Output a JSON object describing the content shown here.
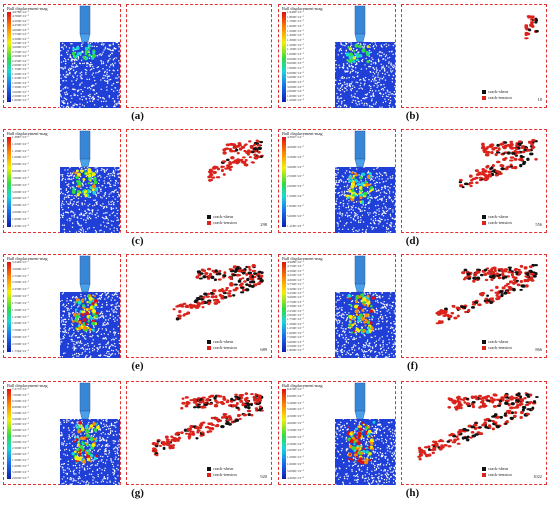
{
  "colors": {
    "frame": "#e53030",
    "shear": "#111111",
    "tension": "#d9231b"
  },
  "colorbar_title": "Ball displacement-mag",
  "legend": {
    "shear": "crack-shear",
    "tension": "crack-tension"
  },
  "panels": [
    {
      "id": "a",
      "label": "(a)",
      "step": "",
      "crack_extent": 0.0,
      "ticks": [
        "4.9780×10⁻²",
        "4.7600×10⁻²",
        "4.5000×10⁻²",
        "4.2500×10⁻²",
        "4.0000×10⁻²",
        "3.7500×10⁻²",
        "3.5000×10⁻²",
        "3.2500×10⁻²",
        "3.0000×10⁻²",
        "2.7500×10⁻²",
        "2.5000×10⁻²",
        "2.2500×10⁻²",
        "2.0000×10⁻²",
        "1.7500×10⁻²",
        "1.5000×10⁻²",
        "1.2500×10⁻²",
        "1.0000×10⁻²",
        "7.5000×10⁻³",
        "5.0000×10⁻³",
        "2.5000×10⁻³",
        "1.0000×10⁻⁵"
      ]
    },
    {
      "id": "b",
      "label": "(b)",
      "step": "18",
      "crack_extent": 0.1,
      "ticks": [
        "1.9400×10⁻²",
        "1.8000×10⁻²",
        "1.7000×10⁻²",
        "1.6000×10⁻²",
        "1.5000×10⁻²",
        "1.4000×10⁻²",
        "1.3000×10⁻²",
        "1.2000×10⁻²",
        "1.1000×10⁻²",
        "1.0000×10⁻²",
        "9.0000×10⁻³",
        "8.0000×10⁻³",
        "7.0000×10⁻³",
        "6.0000×10⁻³",
        "5.0000×10⁻³",
        "4.0000×10⁻³",
        "3.0000×10⁻³",
        "2.0000×10⁻³",
        "1.0000×10⁻³",
        "1.2000×10⁻⁵"
      ]
    },
    {
      "id": "c",
      "label": "(c)",
      "step": "298",
      "crack_extent": 0.45,
      "ticks": [
        "1.3887×10⁻²",
        "1.2000×10⁻²",
        "1.1000×10⁻²",
        "1.0000×10⁻²",
        "9.0000×10⁻³",
        "8.0000×10⁻³",
        "7.0000×10⁻³",
        "6.0000×10⁻³",
        "5.0000×10⁻³",
        "4.0000×10⁻³",
        "3.0000×10⁻³",
        "2.0000×10⁻³",
        "1.0000×10⁻³",
        "1.2560×10⁻⁵"
      ]
    },
    {
      "id": "d",
      "label": "(d)",
      "step": "556",
      "crack_extent": 0.65,
      "ticks": [
        "4.3907×10⁻²",
        "4.0000×10⁻²",
        "3.5000×10⁻²",
        "3.0000×10⁻²",
        "2.5000×10⁻²",
        "2.0000×10⁻²",
        "1.5000×10⁻²",
        "1.0000×10⁻²",
        "5.0000×10⁻³",
        "1.1180×10⁻⁵"
      ]
    },
    {
      "id": "e",
      "label": "(e)",
      "step": "689",
      "crack_extent": 0.75,
      "ticks": [
        "3.2448×10⁻²",
        "3.0000×10⁻²",
        "2.7500×10⁻²",
        "2.5000×10⁻²",
        "2.2500×10⁻²",
        "2.0000×10⁻²",
        "1.7500×10⁻²",
        "1.5000×10⁻²",
        "1.2500×10⁻²",
        "1.0000×10⁻²",
        "7.5000×10⁻³",
        "5.0000×10⁻³",
        "2.5000×10⁻³",
        "1.7564×10⁻⁵"
      ]
    },
    {
      "id": "f",
      "label": "(f)",
      "step": "866",
      "crack_extent": 0.85,
      "ticks": [
        "4.9980×10⁻²",
        "4.7500×10⁻²",
        "4.5000×10⁻²",
        "4.2500×10⁻²",
        "4.0000×10⁻²",
        "3.7500×10⁻²",
        "3.5000×10⁻²",
        "3.2500×10⁻²",
        "3.0000×10⁻²",
        "2.7500×10⁻²",
        "2.5000×10⁻²",
        "2.2500×10⁻²",
        "2.0000×10⁻²",
        "1.7500×10⁻²",
        "1.5000×10⁻²",
        "1.2500×10⁻²",
        "1.0000×10⁻²",
        "7.5000×10⁻³",
        "5.0000×10⁻³",
        "2.5000×10⁻³",
        "1.8000×10⁻⁵"
      ]
    },
    {
      "id": "g",
      "label": "(g)",
      "step": "920",
      "crack_extent": 0.92,
      "ticks": [
        "7.2772×10⁻²",
        "7.0000×10⁻²",
        "6.5000×10⁻²",
        "6.0000×10⁻²",
        "5.5000×10⁻²",
        "5.0000×10⁻²",
        "4.5000×10⁻²",
        "4.0000×10⁻²",
        "3.5000×10⁻²",
        "3.0000×10⁻²",
        "2.5000×10⁻²",
        "2.0000×10⁻²",
        "1.5000×10⁻²",
        "1.0000×10⁻²",
        "5.0000×10⁻³",
        "2.0050×10⁻⁵"
      ]
    },
    {
      "id": "h",
      "label": "(h)",
      "step": "1022",
      "crack_extent": 1.0,
      "ticks": [
        "6.4700×10⁻²",
        "6.0000×10⁻²",
        "5.5000×10⁻²",
        "5.0000×10⁻²",
        "4.5000×10⁻²",
        "4.0000×10⁻²",
        "3.5000×10⁻²",
        "3.0000×10⁻²",
        "2.5000×10⁻²",
        "2.0000×10⁻²",
        "1.5000×10⁻²",
        "1.0000×10⁻²",
        "5.0000×10⁻³",
        "4.4650×10⁻⁵"
      ]
    }
  ]
}
